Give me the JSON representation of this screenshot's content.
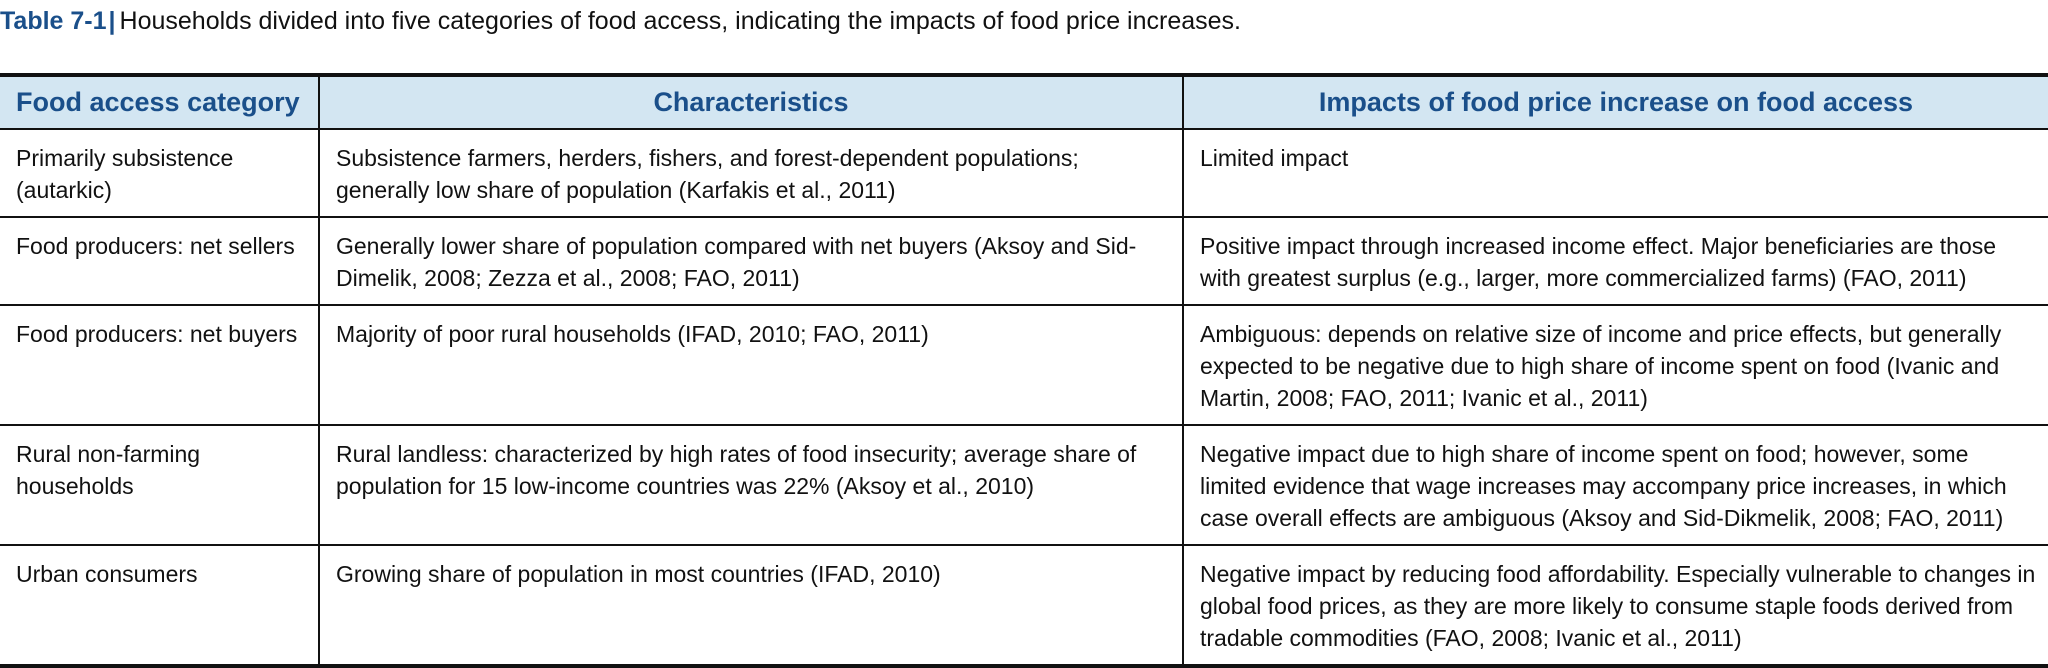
{
  "caption": {
    "label": "Table 7-1",
    "separator": "|",
    "text": "Households divided into five categories of food access, indicating the impacts of food price increases."
  },
  "table": {
    "headers": [
      "Food access category",
      "Characteristics",
      "Impacts of food price increase on food access"
    ],
    "rows": [
      {
        "category": "Primarily subsistence (autarkic)",
        "characteristics": "Subsistence farmers, herders, fishers, and forest-dependent populations; generally low share of population (Karfakis et al., 2011)",
        "impacts": "Limited impact"
      },
      {
        "category": "Food producers: net sellers",
        "characteristics": "Generally lower share of population compared with net buyers (Aksoy and Sid-Dimelik, 2008; Zezza et al., 2008; FAO, 2011)",
        "impacts": "Positive impact through increased income effect.  Major beneficiaries are those with greatest surplus (e.g., larger, more commercialized farms) (FAO, 2011)"
      },
      {
        "category": "Food producers: net buyers",
        "characteristics": "Majority of poor rural households (IFAD, 2010; FAO, 2011)",
        "impacts": "Ambiguous: depends on relative size of income and price effects, but generally expected to be negative due to high share of income spent on food (Ivanic and Martin, 2008; FAO, 2011; Ivanic et al., 2011)"
      },
      {
        "category": "Rural non-farming households",
        "characteristics": "Rural landless: characterized by high rates of food insecurity; average share of population for 15 low-income countries was 22% (Aksoy et al., 2010)",
        "impacts": "Negative impact due to high share of income spent on food; however, some limited evidence that wage increases may accompany price increases, in which case overall effects are ambiguous (Aksoy and Sid-Dikmelik, 2008; FAO, 2011)"
      },
      {
        "category": "Urban consumers",
        "characteristics": "Growing share of population in most countries (IFAD, 2010)",
        "impacts": "Negative impact by reducing food affordability.  Especially vulnerable to changes in global food prices, as they are more likely to consume staple foods derived from tradable commodities (FAO, 2008; Ivanic et al., 2011)"
      }
    ]
  },
  "colors": {
    "accent": "#1a4f8a",
    "header_bg": "#d3e6f2",
    "rule": "#111111"
  }
}
